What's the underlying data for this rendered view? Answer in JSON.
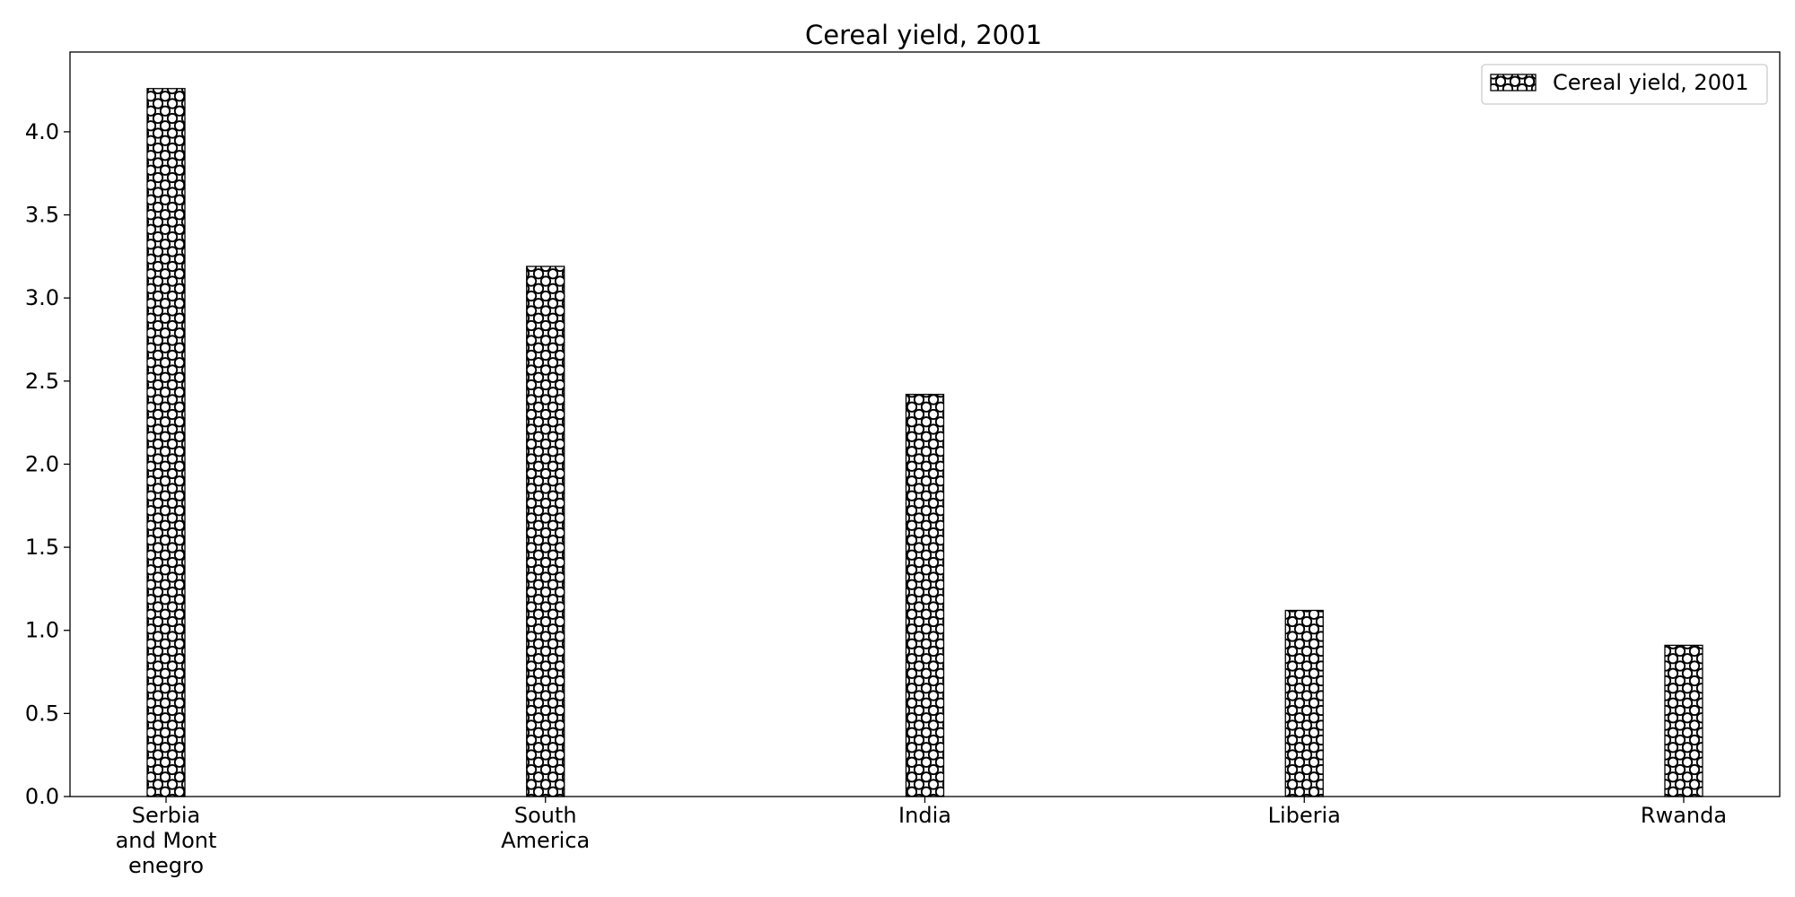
{
  "chart_data": {
    "type": "bar",
    "title": "Cereal yield, 2001",
    "xlabel": "",
    "ylabel": "",
    "categories": [
      "Serbia and Montenegro",
      "South America",
      "India",
      "Liberia",
      "Rwanda"
    ],
    "category_tick_labels": [
      [
        "Serbia",
        "and Mont",
        "enegro"
      ],
      [
        "South",
        "America"
      ],
      [
        "India"
      ],
      [
        "Liberia"
      ],
      [
        "Rwanda"
      ]
    ],
    "series": [
      {
        "name": "Cereal yield, 2001",
        "values": [
          4.26,
          3.19,
          2.42,
          1.12,
          0.91
        ]
      }
    ],
    "ylim": [
      0,
      4.48
    ],
    "yticks": [
      0.0,
      0.5,
      1.0,
      1.5,
      2.0,
      2.5,
      3.0,
      3.5,
      4.0
    ],
    "ytick_labels": [
      "0.0",
      "0.5",
      "1.0",
      "1.5",
      "2.0",
      "2.5",
      "3.0",
      "3.5",
      "4.0"
    ],
    "grid": false,
    "legend_position": "top-right",
    "bar_fill": "#ffffff",
    "bar_edge": "#000000",
    "bar_hatch": "circles"
  }
}
